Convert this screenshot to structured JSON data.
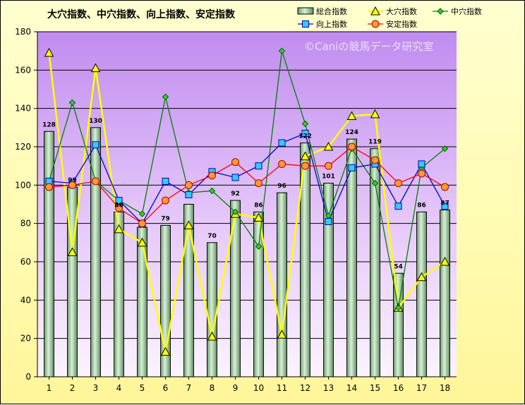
{
  "chart_data": {
    "type": "bar",
    "title": "大穴指数、中穴指数、向上指数、安定指数",
    "watermark": "©Caniの競馬データ研究室",
    "xlabel": "",
    "ylabel": "",
    "categories": [
      "1",
      "2",
      "3",
      "4",
      "5",
      "6",
      "7",
      "8",
      "9",
      "10",
      "11",
      "12",
      "13",
      "14",
      "15",
      "16",
      "17",
      "18"
    ],
    "ylim": [
      0,
      180
    ],
    "yticks": [
      0,
      20,
      40,
      60,
      80,
      100,
      120,
      140,
      160,
      180
    ],
    "grid": true,
    "legend_position": "top-right",
    "colors": {
      "plot_top": "#cc99ff",
      "plot_bottom": "#f8eaff",
      "bar_fill": "#9ec79e",
      "bar_stroke": "#000000",
      "large": "#ffff00",
      "large_line": "#ffff00",
      "mid": "#008000",
      "mid_marker": "#33cc33",
      "up": "#0000cc",
      "up_marker": "#33ccff",
      "stable": "#ff0000",
      "stable_marker": "#ff9933"
    },
    "series": [
      {
        "name": "総合指数",
        "kind": "bar",
        "values": [
          128,
          99,
          130,
          86,
          78,
          79,
          90,
          70,
          92,
          86,
          96,
          122,
          101,
          124,
          119,
          54,
          86,
          87
        ],
        "labels": [
          "128",
          "99",
          "130",
          "86",
          "",
          "79",
          "",
          "70",
          "92",
          "86",
          "96",
          "122",
          "101",
          "124",
          "119",
          "54",
          "86",
          "87"
        ]
      },
      {
        "name": "大穴指数",
        "kind": "line",
        "values": [
          169,
          65,
          161,
          77,
          70,
          13,
          79,
          21,
          85,
          83,
          22,
          115,
          120,
          136,
          137,
          36,
          52,
          60
        ]
      },
      {
        "name": "中穴指数",
        "kind": "line",
        "values": [
          102,
          143,
          102,
          92,
          85,
          146,
          96,
          97,
          86,
          68,
          170,
          132,
          84,
          119,
          101,
          36,
          109,
          119
        ]
      },
      {
        "name": "向上指数",
        "kind": "line",
        "values": [
          102,
          101,
          121,
          92,
          80,
          102,
          95,
          107,
          104,
          110,
          122,
          127,
          81,
          109,
          111,
          89,
          111,
          89
        ]
      },
      {
        "name": "安定指数",
        "kind": "line",
        "values": [
          99,
          100,
          102,
          88,
          80,
          92,
          100,
          105,
          112,
          101,
          111,
          110,
          110,
          120,
          113,
          101,
          106,
          99
        ]
      }
    ]
  }
}
